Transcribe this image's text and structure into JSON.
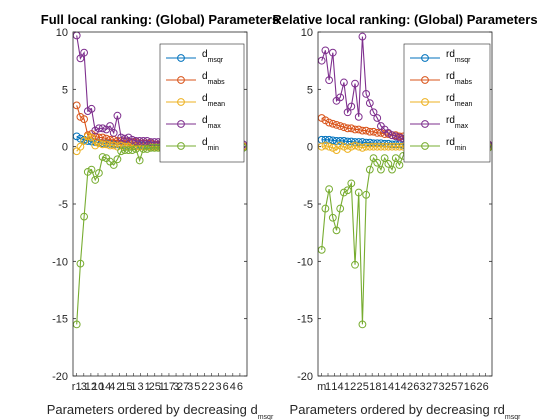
{
  "chart_data": [
    {
      "type": "line",
      "title": "Full local ranking: (Global) Parameters",
      "xlabel_main": "Parameters ordered by decreasing d",
      "xlabel_sub": "msqr",
      "ylabel": "",
      "ylim": [
        -20,
        10
      ],
      "yticks": [
        -20,
        -15,
        -10,
        -5,
        0,
        5,
        10
      ],
      "x": [
        1,
        2,
        3,
        4,
        5,
        6,
        7,
        8,
        9,
        10,
        11,
        12,
        13,
        14,
        15,
        16,
        17,
        18,
        19,
        20,
        21,
        22,
        23,
        24,
        25,
        26,
        27,
        28,
        29,
        30,
        31,
        32,
        33,
        34,
        35,
        36,
        37,
        38,
        39,
        40,
        41,
        42,
        43,
        44,
        45,
        46
      ],
      "xticklabels": [
        "r1",
        "3",
        "12",
        "10",
        "14",
        "4",
        "2",
        "15",
        "1",
        "3",
        "1",
        "25",
        "1",
        "17",
        "3",
        "27",
        "3",
        "5",
        "2",
        "2",
        "3",
        "6",
        "4",
        "6"
      ],
      "legend_location": "top-right",
      "series": [
        {
          "label_main": "d",
          "label_sub": "msqr",
          "color": "#0072BD",
          "values": [
            0.9,
            0.7,
            0.6,
            0.5,
            0.45,
            0.4,
            0.35,
            0.3,
            0.28,
            0.25,
            0.22,
            0.2,
            0.18,
            0.16,
            0.15,
            0.14,
            0.13,
            0.12,
            0.11,
            0.1,
            0.09,
            0.08,
            0.08,
            0.07,
            0.07,
            0.06,
            0.06,
            0.05,
            0.05,
            0.05,
            0.04,
            0.04,
            0.04,
            0.03,
            0.03,
            0.03,
            0.03,
            0.02,
            0.02,
            0.02,
            0.02,
            0.02,
            0.01,
            0.01,
            0.01,
            0.01
          ]
        },
        {
          "label_main": "d",
          "label_sub": "mabs",
          "color": "#D95319",
          "values": [
            3.6,
            2.6,
            2.4,
            1.0,
            1.1,
            0.9,
            0.8,
            0.8,
            0.7,
            0.6,
            0.6,
            0.5,
            0.5,
            0.5,
            0.4,
            0.4,
            0.4,
            0.3,
            0.3,
            0.3,
            0.3,
            0.2,
            0.2,
            0.2,
            0.2,
            0.2,
            0.2,
            0.1,
            0.1,
            0.1,
            0.1,
            0.1,
            0.1,
            0.1,
            0.1,
            0.1,
            0.1,
            0.05,
            0.05,
            0.05,
            0.05,
            0.05,
            0.05,
            0.05,
            0.05,
            0.05
          ]
        },
        {
          "label_main": "d",
          "label_sub": "mean",
          "color": "#EDB120",
          "values": [
            -0.4,
            0.0,
            0.5,
            0.9,
            0.8,
            0.1,
            0.3,
            0.2,
            0.2,
            0.1,
            0.1,
            0.0,
            0.1,
            0.0,
            0.0,
            0.1,
            0.0,
            0.0,
            0.0,
            0.0,
            0.0,
            0.0,
            0.0,
            0.0,
            0.0,
            0.0,
            0.0,
            0.0,
            0.0,
            0.0,
            0.0,
            0.0,
            0.0,
            0.0,
            0.0,
            0.0,
            0.0,
            0.0,
            0.0,
            0.0,
            0.0,
            0.0,
            0.0,
            0.0,
            0.0,
            0.0
          ]
        },
        {
          "label_main": "d",
          "label_sub": "max",
          "color": "#7E2F8E",
          "values": [
            9.7,
            7.7,
            8.2,
            3.1,
            3.3,
            1.4,
            1.6,
            1.6,
            1.5,
            1.8,
            1.2,
            2.7,
            0.8,
            0.7,
            0.8,
            0.6,
            0.5,
            0.5,
            0.5,
            0.5,
            0.4,
            0.4,
            0.4,
            0.4,
            0.3,
            0.3,
            0.3,
            0.3,
            0.3,
            0.3,
            0.3,
            0.2,
            0.2,
            0.2,
            0.2,
            0.2,
            0.2,
            0.2,
            0.2,
            0.2,
            0.2,
            0.2,
            0.2,
            0.2,
            0.2,
            0.2
          ]
        },
        {
          "label_main": "d",
          "label_sub": "min",
          "color": "#77AC30",
          "values": [
            -15.5,
            -10.2,
            -6.1,
            -2.2,
            -2.0,
            -2.9,
            -2.3,
            -0.9,
            -1.0,
            -1.3,
            -1.6,
            -1.1,
            -0.4,
            -0.3,
            -0.3,
            -0.3,
            -0.2,
            -1.2,
            -0.2,
            -0.2,
            -0.1,
            -0.1,
            -0.1,
            -0.1,
            -0.1,
            -0.1,
            -0.1,
            -0.1,
            -0.1,
            -0.1,
            -0.1,
            -0.1,
            -0.1,
            -0.1,
            -0.1,
            -0.1,
            -0.1,
            -0.1,
            -0.1,
            -0.1,
            -0.1,
            -0.1,
            -0.1,
            -0.1,
            -0.1,
            -0.1
          ]
        }
      ]
    },
    {
      "type": "line",
      "title": "Relative local ranking: (Global) Parameters",
      "xlabel_main": "Parameters ordered by decreasing rd",
      "xlabel_sub": "msqr",
      "ylabel": "",
      "ylim": [
        -20,
        10
      ],
      "yticks": [
        -20,
        -15,
        -10,
        -5,
        0,
        5,
        10
      ],
      "x": [
        1,
        2,
        3,
        4,
        5,
        6,
        7,
        8,
        9,
        10,
        11,
        12,
        13,
        14,
        15,
        16,
        17,
        18,
        19,
        20,
        21,
        22,
        23,
        24,
        25,
        26,
        27,
        28,
        29,
        30,
        31,
        32,
        33,
        34,
        35,
        36,
        37,
        38,
        39,
        40,
        41,
        42,
        43,
        44,
        45,
        46
      ],
      "xticklabels": [
        "m",
        "1",
        "1",
        "4",
        "1",
        "2",
        "2",
        "5",
        "1",
        "8",
        "1",
        "4",
        "1",
        "4",
        "2",
        "6",
        "3",
        "2",
        "7",
        "3",
        "2",
        "5",
        "7",
        "1",
        "6",
        "2",
        "6"
      ],
      "legend_location": "top-right",
      "series": [
        {
          "label_main": "rd",
          "label_sub": "msqr",
          "color": "#0072BD",
          "values": [
            0.6,
            0.6,
            0.6,
            0.55,
            0.5,
            0.5,
            0.5,
            0.45,
            0.45,
            0.4,
            0.4,
            0.4,
            0.35,
            0.35,
            0.3,
            0.3,
            0.3,
            0.25,
            0.25,
            0.2,
            0.2,
            0.2,
            0.15,
            0.15,
            0.15,
            0.1,
            0.1,
            0.1,
            0.1,
            0.1,
            0.05,
            0.05,
            0.05,
            0.05,
            0.05,
            0.05,
            0.05,
            0.05,
            0.05,
            0.05,
            0.05,
            0.05,
            0.05,
            0.05,
            0.05,
            0.05
          ]
        },
        {
          "label_main": "rd",
          "label_sub": "mabs",
          "color": "#D95319",
          "values": [
            2.5,
            2.3,
            2.1,
            2.0,
            1.9,
            1.8,
            1.7,
            1.6,
            1.6,
            1.5,
            1.5,
            1.4,
            1.4,
            1.3,
            1.3,
            1.2,
            1.2,
            1.1,
            1.1,
            1.0,
            1.0,
            0.9,
            0.9,
            0.8,
            0.8,
            0.7,
            0.7,
            0.6,
            0.6,
            0.6,
            0.5,
            0.5,
            0.5,
            0.4,
            0.4,
            0.4,
            0.3,
            0.3,
            0.3,
            0.3,
            0.2,
            0.2,
            0.2,
            0.2,
            0.2,
            0.2
          ]
        },
        {
          "label_main": "rd",
          "label_sub": "mean",
          "color": "#EDB120",
          "values": [
            0.0,
            0.1,
            0.0,
            -0.1,
            -0.3,
            0.1,
            0.0,
            -0.2,
            0.0,
            0.1,
            0.0,
            -0.1,
            0.0,
            0.0,
            0.0,
            0.0,
            0.0,
            0.0,
            0.0,
            0.0,
            0.0,
            0.0,
            0.0,
            0.0,
            0.0,
            0.0,
            0.0,
            0.0,
            0.0,
            0.0,
            0.0,
            0.0,
            0.0,
            0.0,
            0.0,
            0.0,
            0.0,
            0.0,
            0.0,
            0.0,
            0.0,
            0.0,
            0.0,
            0.0,
            0.0,
            0.0
          ]
        },
        {
          "label_main": "rd",
          "label_sub": "max",
          "color": "#7E2F8E",
          "values": [
            7.5,
            8.4,
            5.8,
            8.2,
            4.0,
            4.3,
            5.6,
            3.0,
            3.5,
            5.5,
            2.6,
            9.6,
            4.6,
            3.8,
            3.0,
            2.5,
            1.8,
            1.5,
            1.2,
            1.0,
            0.9,
            0.8,
            0.7,
            0.6,
            0.5,
            0.5,
            0.4,
            0.4,
            0.3,
            0.3,
            0.3,
            0.3,
            0.2,
            0.2,
            0.2,
            0.2,
            0.2,
            0.2,
            0.2,
            0.2,
            0.2,
            0.2,
            0.2,
            0.2,
            0.2,
            0.2
          ]
        },
        {
          "label_main": "rd",
          "label_sub": "min",
          "color": "#77AC30",
          "values": [
            -9.0,
            -5.4,
            -3.7,
            -6.2,
            -7.3,
            -5.4,
            -4.0,
            -3.8,
            -3.2,
            -10.3,
            -4.0,
            -15.5,
            -4.2,
            -2.0,
            -1.0,
            -1.4,
            -2.0,
            -1.0,
            -1.5,
            -2.0,
            -1.0,
            -1.6,
            -0.8,
            -0.6,
            -0.5,
            -0.4,
            -0.3,
            -0.3,
            -0.2,
            -0.2,
            -0.2,
            -0.2,
            -0.1,
            -0.1,
            -0.1,
            -0.1,
            -0.1,
            -0.1,
            -0.1,
            -0.1,
            -0.1,
            -0.1,
            -0.1,
            -0.1,
            -0.1,
            -0.1
          ]
        }
      ]
    }
  ]
}
